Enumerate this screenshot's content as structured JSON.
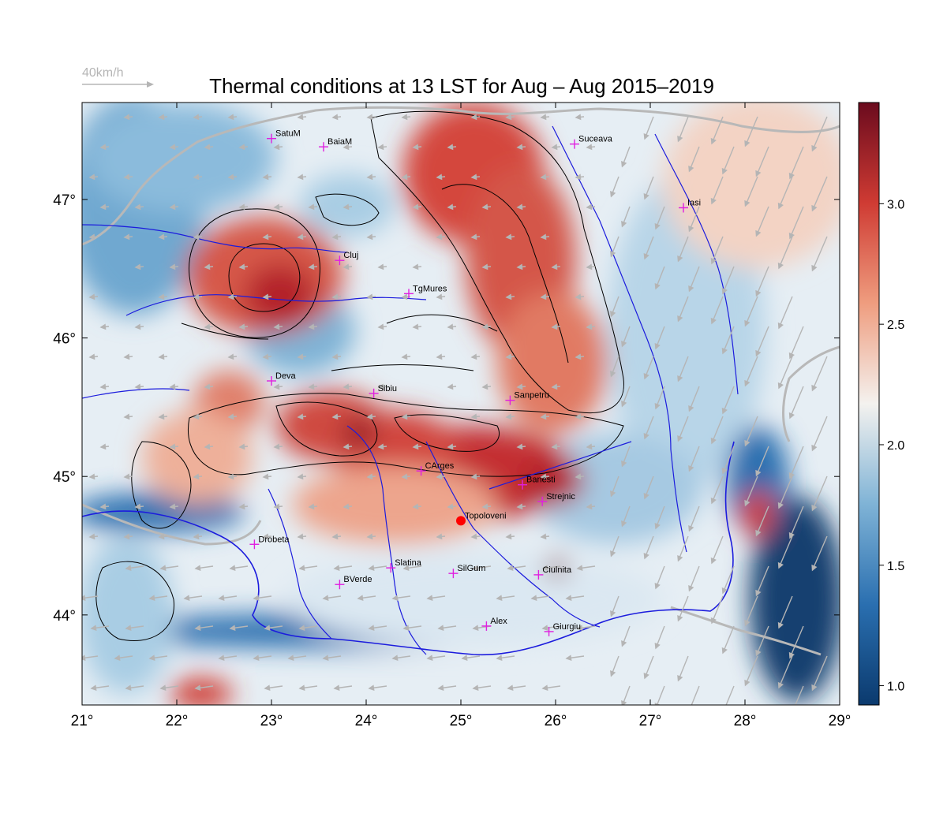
{
  "title": "Thermal conditions at 13 LST for Aug – Aug  2015–2019",
  "wind_reference": {
    "label": "40km/h",
    "arrow_color": "#b5b5b5"
  },
  "map": {
    "lon_range": [
      21,
      29
    ],
    "lat_range": [
      43.35,
      47.7
    ],
    "lon_ticks": [
      {
        "value": 21,
        "label": "21°"
      },
      {
        "value": 22,
        "label": "22°"
      },
      {
        "value": 23,
        "label": "23°"
      },
      {
        "value": 24,
        "label": "24°"
      },
      {
        "value": 25,
        "label": "25°"
      },
      {
        "value": 26,
        "label": "26°"
      },
      {
        "value": 27,
        "label": "27°"
      },
      {
        "value": 28,
        "label": "28°"
      },
      {
        "value": 29,
        "label": "29°"
      }
    ],
    "lat_ticks": [
      {
        "value": 44,
        "label": "44°"
      },
      {
        "value": 45,
        "label": "45°"
      },
      {
        "value": 46,
        "label": "46°"
      },
      {
        "value": 47,
        "label": "47°"
      }
    ],
    "colors": {
      "rivers": "#1c1cdd",
      "borders": "#b8b8b8",
      "contours": "#000000",
      "markers": "#e020e0",
      "highlight": "#ff0000"
    }
  },
  "colorbar": {
    "range": [
      0.92,
      3.42
    ],
    "ticks": [
      {
        "value": 1.0,
        "label": "1.0"
      },
      {
        "value": 1.5,
        "label": "1.5"
      },
      {
        "value": 2.0,
        "label": "2.0"
      },
      {
        "value": 2.5,
        "label": "2.5"
      },
      {
        "value": 3.0,
        "label": "3.0"
      }
    ],
    "colors": [
      "#0b3a6e",
      "#2a6fb0",
      "#7fb3d6",
      "#f4f2ef",
      "#ef9d7f",
      "#cf3b33",
      "#6b0b1e"
    ]
  },
  "cities": [
    {
      "name": "SatuM",
      "lon": 23.0,
      "lat": 47.44
    },
    {
      "name": "BaiaM",
      "lon": 23.55,
      "lat": 47.38
    },
    {
      "name": "Suceava",
      "lon": 26.2,
      "lat": 47.4
    },
    {
      "name": "Iasi",
      "lon": 27.35,
      "lat": 46.94
    },
    {
      "name": "Cluj",
      "lon": 23.72,
      "lat": 46.56
    },
    {
      "name": "TgMures",
      "lon": 24.45,
      "lat": 46.32
    },
    {
      "name": "Deva",
      "lon": 23.0,
      "lat": 45.69
    },
    {
      "name": "Sibiu",
      "lon": 24.08,
      "lat": 45.6
    },
    {
      "name": "Sanpetru",
      "lon": 25.52,
      "lat": 45.55
    },
    {
      "name": "CArges",
      "lon": 24.58,
      "lat": 45.04
    },
    {
      "name": "Banesti",
      "lon": 25.65,
      "lat": 44.94
    },
    {
      "name": "Strejnic",
      "lon": 25.86,
      "lat": 44.82
    },
    {
      "name": "Topoloveni",
      "lon": 25.0,
      "lat": 44.68,
      "highlight": true
    },
    {
      "name": "Drobeta",
      "lon": 22.82,
      "lat": 44.51
    },
    {
      "name": "Slatina",
      "lon": 24.26,
      "lat": 44.34
    },
    {
      "name": "SilGum",
      "lon": 24.92,
      "lat": 44.3
    },
    {
      "name": "Ciulnita",
      "lon": 25.82,
      "lat": 44.29
    },
    {
      "name": "BVerde",
      "lon": 23.72,
      "lat": 44.22
    },
    {
      "name": "Alex",
      "lon": 25.27,
      "lat": 43.92
    },
    {
      "name": "Giurgiu",
      "lon": 25.93,
      "lat": 43.88
    }
  ]
}
